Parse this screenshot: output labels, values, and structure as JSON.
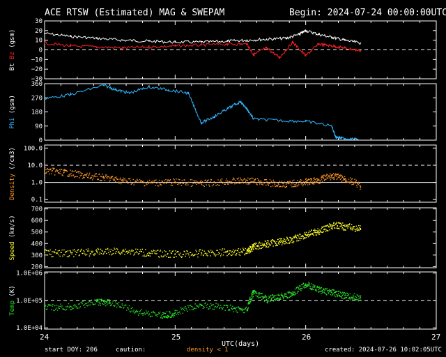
{
  "header": {
    "title": "ACE RTSW (Estimated) MAG & SWEPAM",
    "begin": "Begin: 2024-07-24 00:00:00UTC"
  },
  "footer": {
    "start_doy": "start DOY: 206",
    "caution": "caution:",
    "density_note": "density < 1",
    "created": "created: 2024-07-26 10:02:05UTC"
  },
  "colors": {
    "background": "#000000",
    "bt": "#ffffff",
    "bz": "#ff2020",
    "phi": "#30b8ff",
    "density": "#ff9a28",
    "speed": "#ffff28",
    "temp": "#28e028"
  },
  "chart_data": {
    "type": "scatter",
    "x_title": "UTC(days)",
    "x_ticks": [
      "24",
      "25",
      "26",
      "27"
    ],
    "xlim": [
      24,
      27
    ],
    "data_end_day": 26.42,
    "panels": [
      {
        "name": "bt-bz",
        "ylabel_parts": [
          "Bt",
          "Bz",
          "(gsm)"
        ],
        "ylim": [
          -30,
          30
        ],
        "tick_values": [
          30,
          20,
          10,
          0,
          -10,
          -20,
          -30
        ],
        "ticks": [
          "30",
          "20",
          "10",
          "0",
          "−10",
          "−20",
          "−30"
        ],
        "scale": "linear",
        "dashed": [
          0
        ],
        "series": [
          {
            "name": "Bt",
            "color": "#ffffff",
            "style": "line",
            "x": [
              24.0,
              24.2,
              24.4,
              24.6,
              24.8,
              25.0,
              25.2,
              25.4,
              25.55,
              25.7,
              25.85,
              25.95,
              26.0,
              26.1,
              26.2,
              26.3,
              26.42
            ],
            "y": [
              17,
              14,
              12,
              10,
              9,
              8,
              8,
              9,
              10,
              11,
              12,
              16,
              20,
              16,
              13,
              10,
              7
            ]
          },
          {
            "name": "Bz",
            "color": "#ff2020",
            "style": "line",
            "x": [
              24.0,
              24.2,
              24.4,
              24.6,
              24.8,
              25.0,
              25.2,
              25.4,
              25.55,
              25.6,
              25.7,
              25.8,
              25.9,
              26.0,
              26.1,
              26.2,
              26.3,
              26.42
            ],
            "y": [
              7,
              4,
              3,
              2,
              3,
              4,
              5,
              6,
              6,
              -5,
              2,
              -8,
              8,
              -6,
              6,
              4,
              2,
              -1
            ]
          }
        ]
      },
      {
        "name": "phi",
        "ylabel_parts": [
          "Phi",
          "(gsm)"
        ],
        "ylim": [
          0,
          360
        ],
        "tick_values": [
          360,
          270,
          180,
          90,
          0
        ],
        "ticks": [
          "360",
          "270",
          "180",
          "90",
          "0"
        ],
        "scale": "linear",
        "dashed": [],
        "series": [
          {
            "name": "Phi",
            "color": "#30b8ff",
            "style": "line",
            "x": [
              24.0,
              24.2,
              24.45,
              24.55,
              24.65,
              24.8,
              24.95,
              25.1,
              25.2,
              25.3,
              25.4,
              25.5,
              25.55,
              25.6,
              25.8,
              26.0,
              26.2,
              26.23,
              26.3,
              26.4
            ],
            "y": [
              265,
              290,
              350,
              320,
              300,
              340,
              320,
              300,
              110,
              150,
              200,
              245,
              200,
              135,
              125,
              120,
              90,
              20,
              10,
              5
            ]
          }
        ]
      },
      {
        "name": "density",
        "ylabel_parts": [
          "Density",
          "(/cm3)"
        ],
        "ylim": [
          0.07,
          150
        ],
        "tick_values": [
          100,
          10,
          1,
          0.1
        ],
        "ticks": [
          "100.0",
          "10.0",
          "1.0",
          "0.1"
        ],
        "scale": "log",
        "dashed": [
          10
        ],
        "solid": [
          1
        ],
        "series": [
          {
            "name": "Density",
            "color": "#ff9a28",
            "style": "scatter",
            "x": [
              24.0,
              24.15,
              24.3,
              24.45,
              24.6,
              24.8,
              25.0,
              25.2,
              25.4,
              25.55,
              25.7,
              25.85,
              26.0,
              26.1,
              26.2,
              26.3,
              26.42
            ],
            "y": [
              5,
              4,
              2.5,
              2,
              1.3,
              1.0,
              1.1,
              0.9,
              1.2,
              1.3,
              1.0,
              0.8,
              1.1,
              1.4,
              2.5,
              1.6,
              0.6
            ]
          }
        ]
      },
      {
        "name": "speed",
        "ylabel_parts": [
          "Speed",
          "(km/s)"
        ],
        "ylim": [
          190,
          710
        ],
        "tick_values": [
          700,
          600,
          500,
          400,
          300,
          200
        ],
        "ticks": [
          "700",
          "600",
          "500",
          "400",
          "300",
          "200"
        ],
        "scale": "linear",
        "dashed": [],
        "series": [
          {
            "name": "Speed",
            "color": "#ffff28",
            "style": "scatter",
            "x": [
              24.0,
              24.2,
              24.4,
              24.6,
              24.8,
              25.0,
              25.2,
              25.4,
              25.55,
              25.6,
              25.7,
              25.8,
              25.9,
              26.0,
              26.1,
              26.2,
              26.3,
              26.42
            ],
            "y": [
              320,
              320,
              330,
              340,
              320,
              310,
              320,
              330,
              335,
              380,
              400,
              420,
              440,
              480,
              510,
              560,
              550,
              530
            ]
          }
        ]
      },
      {
        "name": "temp",
        "ylabel_parts": [
          "Temp",
          "(K)"
        ],
        "ylim": [
          9000,
          1100000
        ],
        "tick_values": [
          1000000,
          100000,
          10000
        ],
        "ticks": [
          "1.0E+06",
          "1.0E+05",
          "1.0E+04"
        ],
        "scale": "log",
        "dashed": [
          100000
        ],
        "series": [
          {
            "name": "Temp",
            "color": "#28e028",
            "style": "scatter",
            "x": [
              24.0,
              24.2,
              24.4,
              24.5,
              24.7,
              24.9,
              25.0,
              25.2,
              25.4,
              25.55,
              25.6,
              25.7,
              25.8,
              25.9,
              26.0,
              26.1,
              26.2,
              26.3,
              26.42
            ],
            "y": [
              55000,
              60000,
              90000,
              85000,
              40000,
              30000,
              35000,
              70000,
              55000,
              45000,
              200000,
              110000,
              150000,
              170000,
              400000,
              250000,
              200000,
              150000,
              130000
            ]
          }
        ]
      }
    ]
  }
}
